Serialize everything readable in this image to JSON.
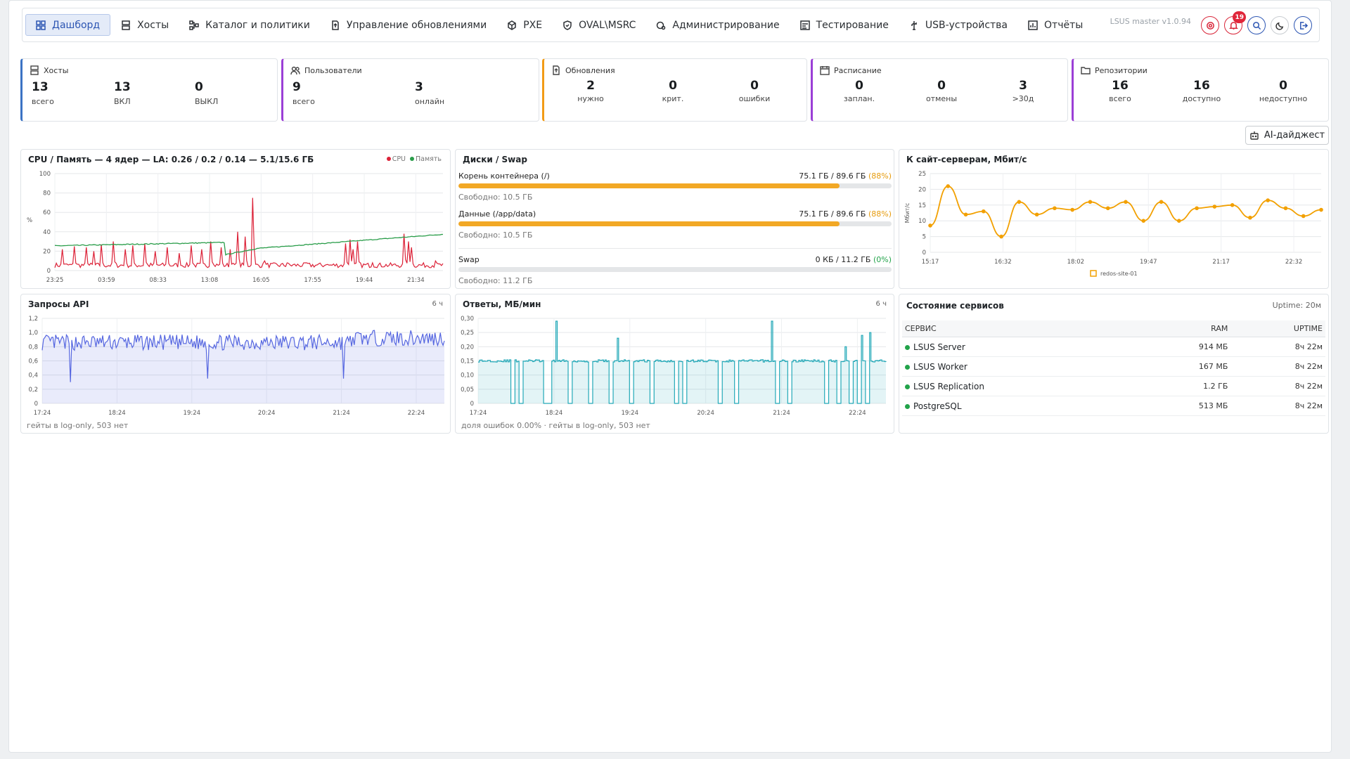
{
  "nav": {
    "items": [
      {
        "label": "Дашборд",
        "icon": "dashboard-icon",
        "active": true
      },
      {
        "label": "Хосты",
        "icon": "server-icon"
      },
      {
        "label": "Каталог и политики",
        "icon": "catalog-icon"
      },
      {
        "label": "Управление обновлениями",
        "icon": "updates-icon"
      },
      {
        "label": "PXE",
        "icon": "box-icon"
      },
      {
        "label": "OVAL\\MSRC",
        "icon": "shield-icon"
      },
      {
        "label": "Администрирование",
        "icon": "admin-gear-icon"
      },
      {
        "label": "Тестирование",
        "icon": "testing-icon"
      },
      {
        "label": "USB-устройства",
        "icon": "usb-icon"
      },
      {
        "label": "Отчёты",
        "icon": "reports-icon"
      }
    ],
    "version": "LSUS master v1.0.94",
    "notifications_count": "19"
  },
  "stats": {
    "hosts": {
      "title": "Хосты",
      "v1": "13",
      "l1": "всего",
      "v2": "13",
      "l2": "ВКЛ",
      "v3": "0",
      "l3": "ВЫКЛ"
    },
    "users": {
      "title": "Пользователи",
      "v1": "9",
      "l1": "всего",
      "v2": "3",
      "l2": "онлайн"
    },
    "updates": {
      "title": "Обновления",
      "v1": "2",
      "l1": "нужно",
      "v2": "0",
      "l2": "крит.",
      "v3": "0",
      "l3": "ошибки"
    },
    "schedule": {
      "title": "Расписание",
      "v1": "0",
      "l1": "заплан.",
      "v2": "0",
      "l2": "отмены",
      "v3": "3",
      "l3": ">30д"
    },
    "repos": {
      "title": "Репозитории",
      "v1": "16",
      "l1": "всего",
      "v2": "16",
      "l2": "доступно",
      "v3": "0",
      "l3": "недоступно"
    }
  },
  "ai_button": "AI-дайджест",
  "cpu_panel": {
    "title": "CPU / Память — 4 ядер — LA: 0.26 / 0.2 / 0.14 — 5.1/15.6 ГБ",
    "legend_cpu": "CPU",
    "legend_mem": "Память"
  },
  "disk_panel": {
    "title": "Диски / Swap",
    "disks": [
      {
        "name": "Корень контейнера (/)",
        "usage": "75.1 ГБ / 89.6 ГБ",
        "pct": "(88%)",
        "free": "Свободно: 10.5 ГБ",
        "fill": 0.88
      },
      {
        "name": "Данные (/app/data)",
        "usage": "75.1 ГБ / 89.6 ГБ",
        "pct": "(88%)",
        "free": "Свободно: 10.5 ГБ",
        "fill": 0.88
      },
      {
        "name": "Swap",
        "usage": "0 КБ / 11.2 ГБ",
        "pct": "(0%)",
        "free": "Свободно: 11.2 ГБ",
        "fill": 0
      }
    ]
  },
  "net_panel": {
    "title": "К сайт-серверам, Мбит/с"
  },
  "api_panel": {
    "title": "Запросы API",
    "range": "6 ч",
    "footer": "гейты в log-only, 503 нет"
  },
  "resp_panel": {
    "title": "Ответы, МБ/мин",
    "range": "6 ч",
    "footer": "доля ошибок 0.00% · гейты в log-only, 503 нет"
  },
  "services": {
    "title": "Состояние сервисов",
    "uptime": "Uptime: 20м",
    "columns": [
      "СЕРВИС",
      "RAM",
      "UPTIME"
    ],
    "rows": [
      {
        "name": "LSUS Server",
        "ram": "914 МБ",
        "uptime": "8ч 22м"
      },
      {
        "name": "LSUS Worker",
        "ram": "167 МБ",
        "uptime": "8ч 22м"
      },
      {
        "name": "LSUS Replication",
        "ram": "1.2 ГБ",
        "uptime": "8ч 22м"
      },
      {
        "name": "PostgreSQL",
        "ram": "513 МБ",
        "uptime": "8ч 22м"
      }
    ],
    "status_color": "#22a34a"
  },
  "chart_data": [
    {
      "type": "line",
      "title": "CPU / Память — 4 ядер — LA: 0.26 / 0.2 / 0.14 — 5.1/15.6 ГБ",
      "ylabel": "%",
      "ylim": [
        0,
        100
      ],
      "yticks": [
        0,
        20,
        40,
        60,
        80,
        100
      ],
      "x_ticks": [
        "23:25",
        "03:59",
        "08:33",
        "13:08",
        "16:05",
        "17:55",
        "19:44",
        "21:34"
      ],
      "series": [
        {
          "name": "CPU",
          "color": "#dc2238",
          "baseline": 3,
          "spikes": [
            [
              0.02,
              22
            ],
            [
              0.05,
              25
            ],
            [
              0.08,
              24
            ],
            [
              0.1,
              20
            ],
            [
              0.12,
              27
            ],
            [
              0.15,
              30
            ],
            [
              0.18,
              22
            ],
            [
              0.2,
              26
            ],
            [
              0.23,
              28
            ],
            [
              0.26,
              20
            ],
            [
              0.29,
              24
            ],
            [
              0.32,
              18
            ],
            [
              0.35,
              26
            ],
            [
              0.38,
              22
            ],
            [
              0.4,
              30
            ],
            [
              0.43,
              24
            ],
            [
              0.45,
              22
            ],
            [
              0.47,
              40
            ],
            [
              0.49,
              35
            ],
            [
              0.51,
              75
            ],
            [
              0.54,
              10
            ],
            [
              0.6,
              8
            ],
            [
              0.65,
              8
            ],
            [
              0.7,
              6
            ],
            [
              0.75,
              28
            ],
            [
              0.76,
              32
            ],
            [
              0.77,
              22
            ],
            [
              0.78,
              30
            ],
            [
              0.82,
              8
            ],
            [
              0.9,
              38
            ],
            [
              0.91,
              30
            ],
            [
              0.92,
              24
            ],
            [
              0.95,
              8
            ],
            [
              0.98,
              10
            ]
          ]
        },
        {
          "name": "Память",
          "color": "#2a9d4a",
          "start": 25,
          "jump_at": 0.44,
          "jump_to": 16,
          "end": 33
        }
      ]
    },
    {
      "type": "line",
      "title": "К сайт-серверам, Мбит/с",
      "ylabel": "Мбит/с",
      "ylim": [
        0,
        25
      ],
      "yticks": [
        0,
        5,
        10,
        15,
        20,
        25
      ],
      "x_ticks": [
        "15:17",
        "16:32",
        "18:02",
        "19:47",
        "21:17",
        "22:32"
      ],
      "series": [
        {
          "name": "redos-site-01",
          "color": "#f2a000",
          "values": [
            8.5,
            21,
            12,
            13,
            5,
            16,
            12,
            14,
            13.5,
            16,
            14,
            16,
            10,
            16,
            10,
            14,
            14.5,
            15,
            11,
            16.5,
            14,
            11.5,
            13.5
          ]
        }
      ]
    },
    {
      "type": "area",
      "title": "Запросы API",
      "ylim": [
        0,
        1.2
      ],
      "yticks": [
        0,
        0.2,
        0.4,
        0.6,
        0.8,
        1.0,
        1.2
      ],
      "x_ticks": [
        "17:24",
        "18:24",
        "19:24",
        "20:24",
        "21:24",
        "22:24"
      ],
      "series": [
        {
          "name": "",
          "color": "#5566e0",
          "level": 0.86,
          "dips": [
            [
              0.07,
              0.3
            ],
            [
              0.41,
              0.35
            ],
            [
              0.75,
              0.35
            ]
          ]
        }
      ]
    },
    {
      "type": "area",
      "title": "Ответы, МБ/мин",
      "ylim": [
        0,
        0.3
      ],
      "yticks": [
        0,
        0.05,
        0.1,
        0.15,
        0.2,
        0.25,
        0.3
      ],
      "x_ticks": [
        "17:24",
        "18:24",
        "19:24",
        "20:24",
        "21:24",
        "22:24"
      ],
      "series": [
        {
          "name": "",
          "color": "#23a9b8",
          "level": 0.15,
          "drops": [
            0.08,
            0.1,
            0.16,
            0.17,
            0.22,
            0.27,
            0.32,
            0.37,
            0.42,
            0.48,
            0.5,
            0.59,
            0.63,
            0.73,
            0.76,
            0.85,
            0.88,
            0.91,
            0.93,
            0.95
          ],
          "spikes": [
            [
              0.19,
              0.29
            ],
            [
              0.34,
              0.23
            ],
            [
              0.72,
              0.29
            ],
            [
              0.9,
              0.2
            ],
            [
              0.94,
              0.24
            ],
            [
              0.96,
              0.25
            ]
          ]
        }
      ]
    }
  ]
}
